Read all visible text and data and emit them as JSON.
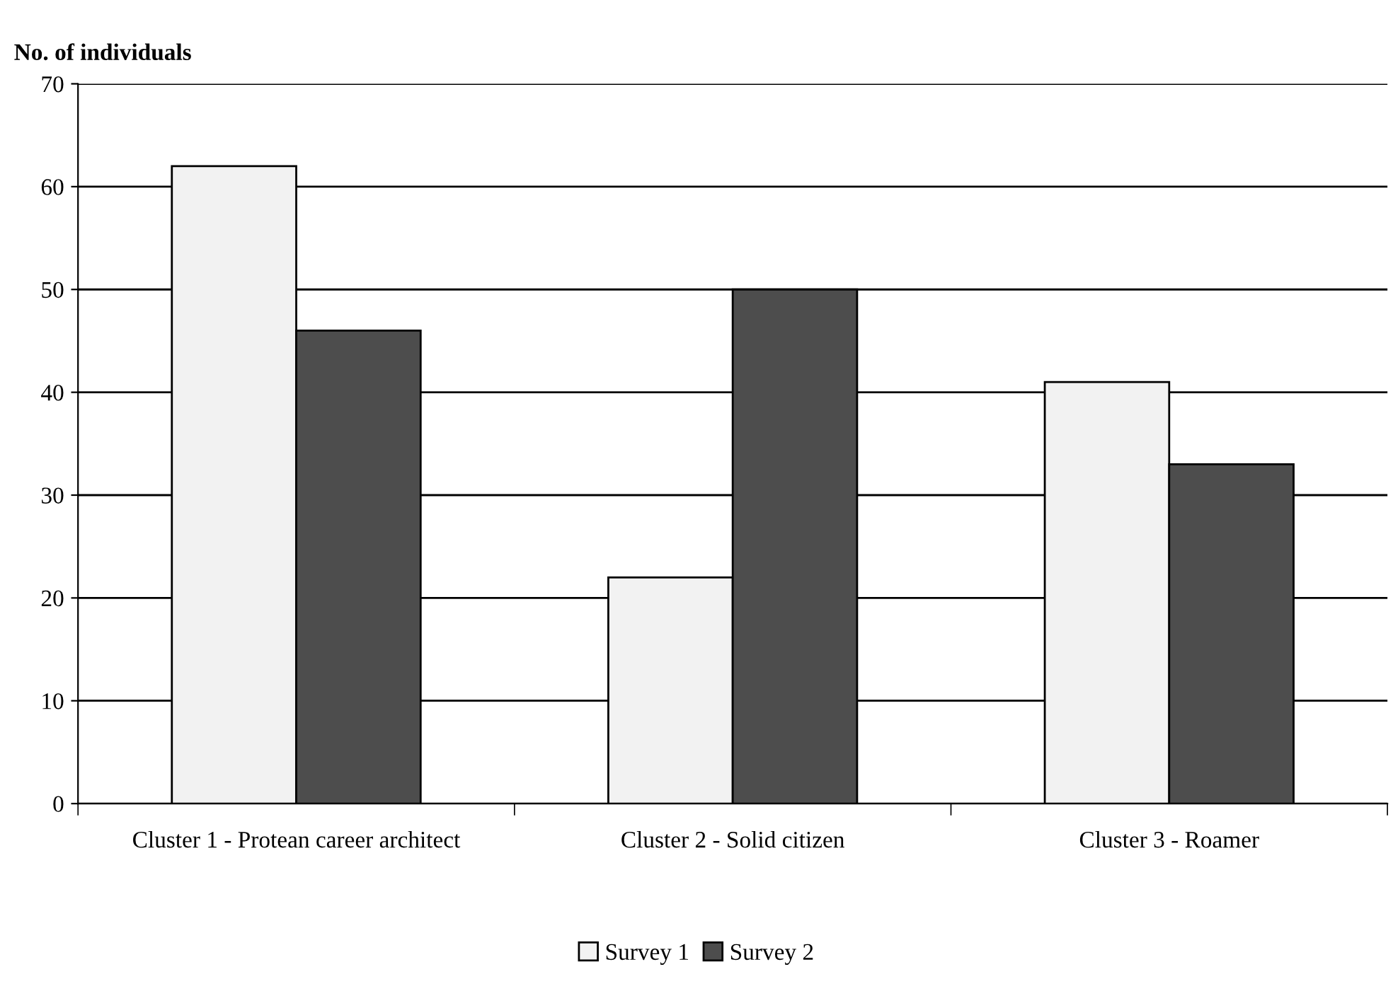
{
  "chart_data": {
    "type": "bar",
    "ylabel": "No. of individuals",
    "categories": [
      "Cluster 1 - Protean career architect",
      "Cluster 2 - Solid citizen",
      "Cluster 3 - Roamer"
    ],
    "series": [
      {
        "name": "Survey 1",
        "color": "#f2f2f2",
        "values": [
          62,
          22,
          41
        ]
      },
      {
        "name": "Survey 2",
        "color": "#4d4d4d",
        "values": [
          46,
          50,
          33
        ]
      }
    ],
    "ylim": [
      0,
      70
    ],
    "yticks": [
      0,
      10,
      20,
      30,
      40,
      50,
      60,
      70
    ],
    "grid": "y",
    "legend": "bottom"
  }
}
